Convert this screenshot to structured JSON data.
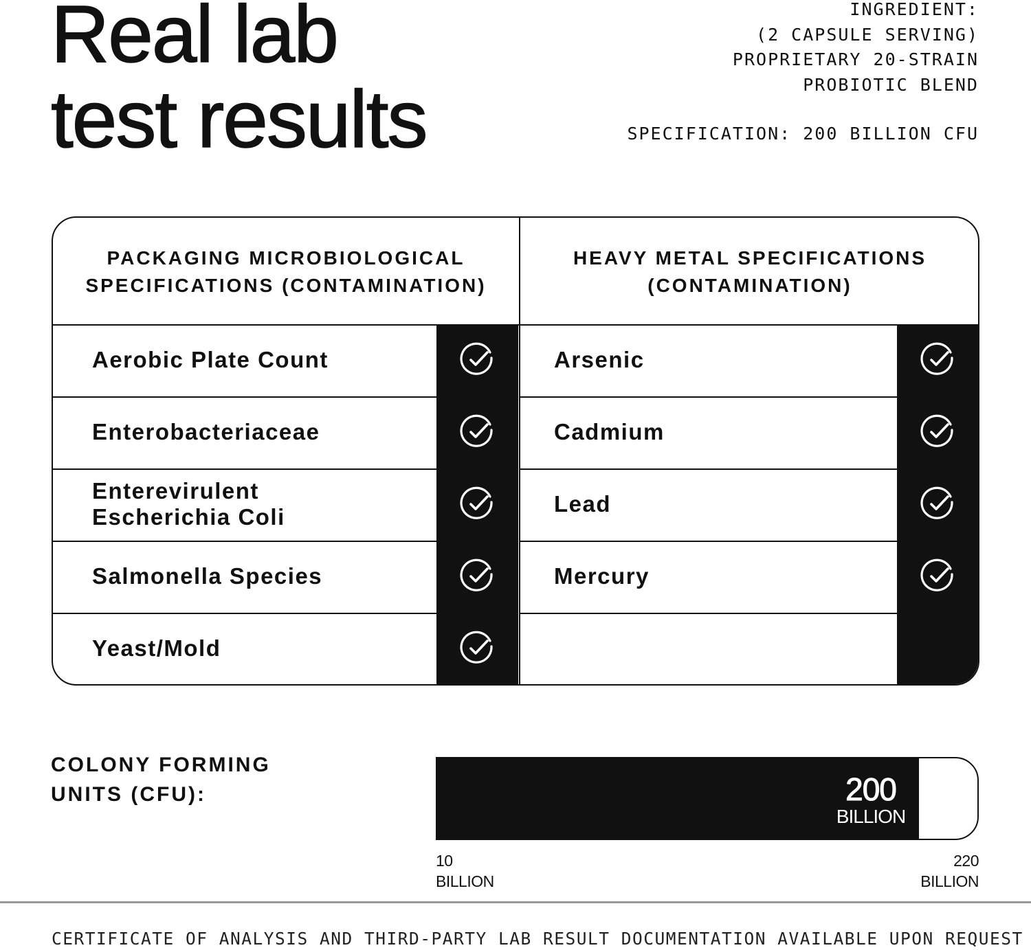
{
  "title_line1": "Real lab",
  "title_line2": "test results",
  "ingredient": [
    "INGREDIENT:",
    "(2 CAPSULE SERVING)",
    "PROPRIETARY 20-STRAIN",
    "PROBIOTIC BLEND"
  ],
  "specification": "SPECIFICATION: 200 BILLION CFU",
  "tables": [
    {
      "header_line1": "PACKAGING MICROBIOLOGICAL",
      "header_line2": "SPECIFICATIONS (CONTAMINATION)",
      "rows": [
        "Aerobic Plate Count",
        "Enterobacteriaceae",
        "Enterevirulent Escherichia Coli",
        "Salmonella Species",
        "Yeast/Mold"
      ],
      "passed": [
        true,
        true,
        true,
        true,
        true
      ]
    },
    {
      "header_line1": "HEAVY METAL SPECIFICATIONS",
      "header_line2": "(CONTAMINATION)",
      "rows": [
        "Arsenic",
        "Cadmium",
        "Lead",
        "Mercury",
        ""
      ],
      "passed": [
        true,
        true,
        true,
        true,
        false
      ]
    }
  ],
  "icons": {
    "pass": "check-circle-icon"
  },
  "cfu": {
    "label_line1": "COLONY FORMING",
    "label_line2": "UNITS (CFU):",
    "value": 200,
    "min": 10,
    "max": 220,
    "value_label": "200",
    "value_unit": "BILLION",
    "min_label": "10",
    "min_unit": "BILLION",
    "max_label": "220",
    "max_unit": "BILLION"
  },
  "footer": "CERTIFICATE OF ANALYSIS AND THIRD-PARTY LAB RESULT DOCUMENTATION AVAILABLE UPON REQUEST",
  "colors": {
    "ink": "#111111",
    "background": "#ffffff"
  }
}
